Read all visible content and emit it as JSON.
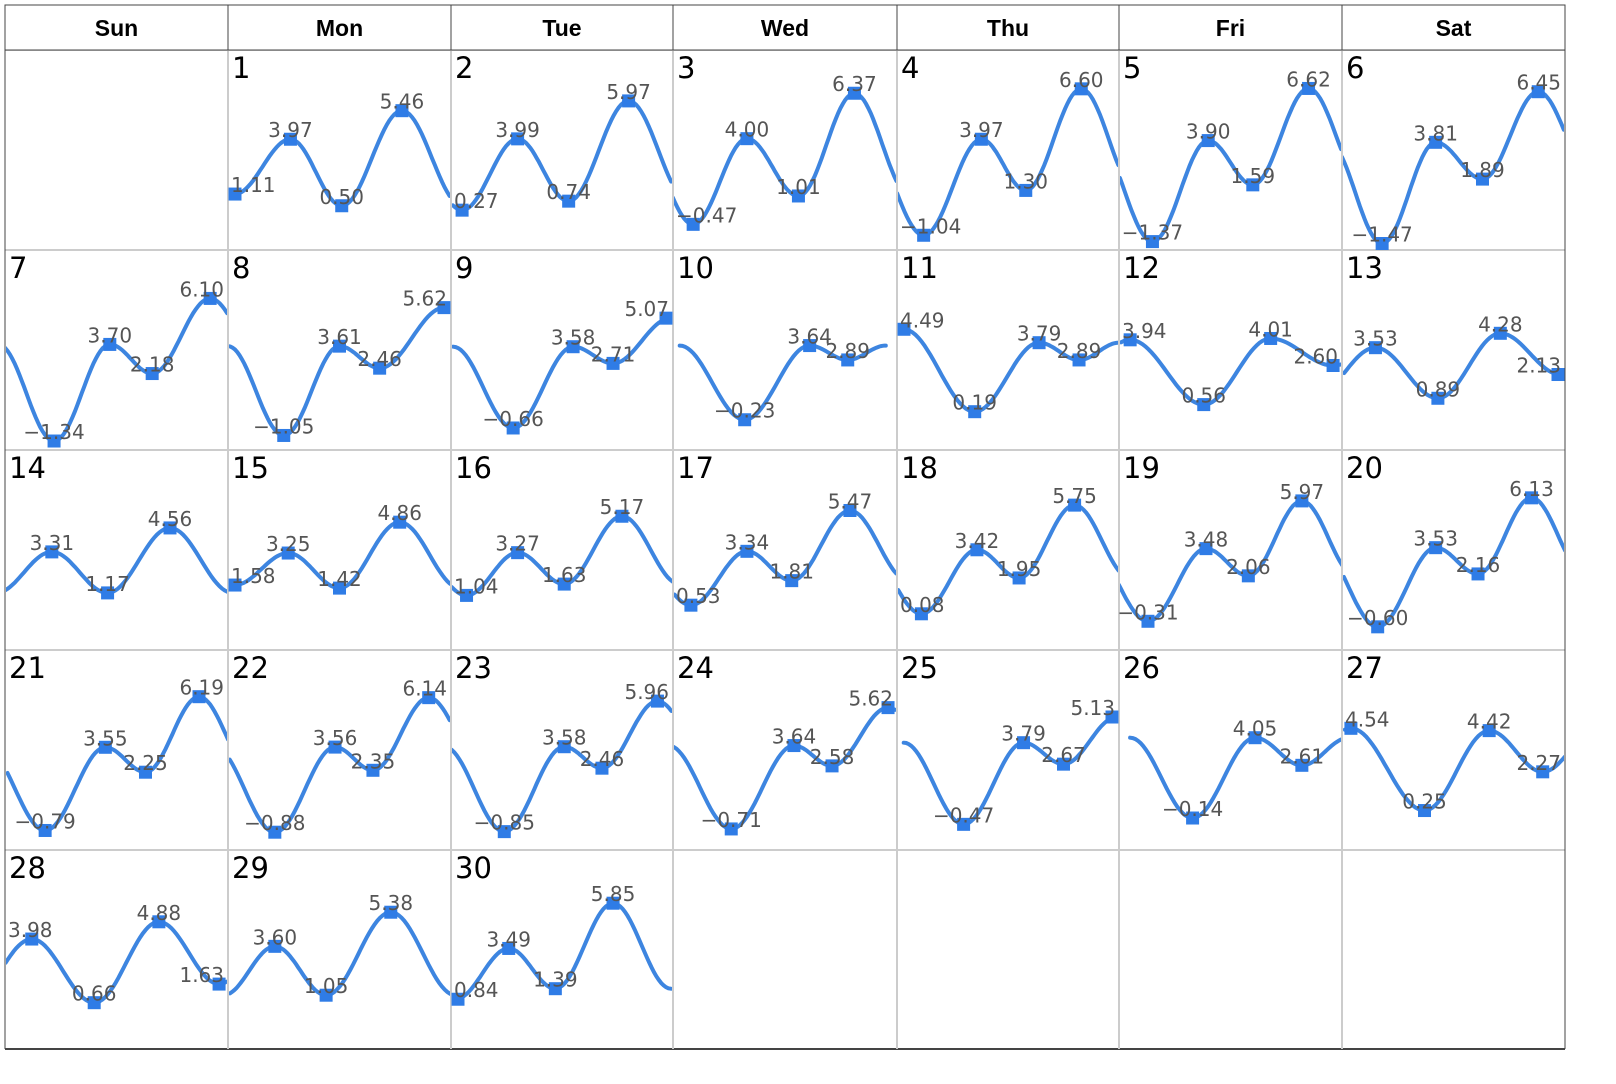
{
  "calendar": {
    "weekdays": [
      "Sun",
      "Mon",
      "Tue",
      "Wed",
      "Thu",
      "Fri",
      "Sat"
    ],
    "first_weekday_index": 1,
    "days_in_month": 30
  },
  "colors": {
    "curve": "#3d85e0",
    "marker": "#2f7ce6",
    "label": "#555555",
    "grid": "#cccccc",
    "border": "#444444"
  },
  "chart_data": {
    "type": "line",
    "title": "",
    "xlabel": "",
    "ylabel": "",
    "ylim": [
      -1.6,
      6.8
    ],
    "markers": "square",
    "days": [
      {
        "day": 1,
        "points": [
          [
            0.03,
            1.11
          ],
          [
            0.28,
            3.97
          ],
          [
            0.51,
            0.5
          ],
          [
            0.78,
            5.46
          ]
        ]
      },
      {
        "day": 2,
        "points": [
          [
            0.05,
            0.27
          ],
          [
            0.3,
            3.99
          ],
          [
            0.53,
            0.74
          ],
          [
            0.8,
            5.97
          ]
        ]
      },
      {
        "day": 3,
        "points": [
          [
            0.09,
            -0.47
          ],
          [
            0.33,
            4.0
          ],
          [
            0.56,
            1.01
          ],
          [
            0.81,
            6.37
          ]
        ]
      },
      {
        "day": 4,
        "points": [
          [
            0.12,
            -1.04
          ],
          [
            0.38,
            3.97
          ],
          [
            0.58,
            1.3
          ],
          [
            0.83,
            6.6
          ]
        ]
      },
      {
        "day": 5,
        "points": [
          [
            0.15,
            -1.37
          ],
          [
            0.4,
            3.9
          ],
          [
            0.6,
            1.59
          ],
          [
            0.85,
            6.62
          ]
        ]
      },
      {
        "day": 6,
        "points": [
          [
            0.18,
            -1.47
          ],
          [
            0.42,
            3.81
          ],
          [
            0.63,
            1.89
          ],
          [
            0.88,
            6.45
          ]
        ]
      },
      {
        "day": 7,
        "points": [
          [
            0.22,
            -1.34
          ],
          [
            0.47,
            3.7
          ],
          [
            0.66,
            2.18
          ],
          [
            0.92,
            6.1
          ]
        ]
      },
      {
        "day": 8,
        "points": [
          [
            0.25,
            -1.05
          ],
          [
            0.5,
            3.61
          ],
          [
            0.68,
            2.46
          ],
          [
            0.97,
            5.62
          ]
        ]
      },
      {
        "day": 9,
        "points": [
          [
            0.28,
            -0.66
          ],
          [
            0.55,
            3.58
          ],
          [
            0.73,
            2.71
          ],
          [
            0.99,
            5.07
          ]
        ]
      },
      {
        "day": 10,
        "points": [
          [
            0.32,
            -0.23
          ],
          [
            0.61,
            3.64
          ],
          [
            0.78,
            2.89
          ]
        ]
      },
      {
        "day": 11,
        "points": [
          [
            0.03,
            4.49
          ],
          [
            0.35,
            0.19
          ],
          [
            0.64,
            3.79
          ],
          [
            0.82,
            2.89
          ]
        ]
      },
      {
        "day": 12,
        "points": [
          [
            0.05,
            3.94
          ],
          [
            0.38,
            0.56
          ],
          [
            0.68,
            4.01
          ],
          [
            0.96,
            2.6
          ]
        ]
      },
      {
        "day": 13,
        "points": [
          [
            0.15,
            3.53
          ],
          [
            0.43,
            0.89
          ],
          [
            0.71,
            4.28
          ],
          [
            0.98,
            2.13
          ]
        ]
      },
      {
        "day": 14,
        "points": [
          [
            0.21,
            3.31
          ],
          [
            0.46,
            1.17
          ],
          [
            0.74,
            4.56
          ]
        ]
      },
      {
        "day": 15,
        "points": [
          [
            0.03,
            1.58
          ],
          [
            0.27,
            3.25
          ],
          [
            0.5,
            1.42
          ],
          [
            0.77,
            4.86
          ]
        ]
      },
      {
        "day": 16,
        "points": [
          [
            0.07,
            1.04
          ],
          [
            0.3,
            3.27
          ],
          [
            0.51,
            1.63
          ],
          [
            0.77,
            5.17
          ]
        ]
      },
      {
        "day": 17,
        "points": [
          [
            0.08,
            0.53
          ],
          [
            0.33,
            3.34
          ],
          [
            0.53,
            1.81
          ],
          [
            0.79,
            5.47
          ]
        ]
      },
      {
        "day": 18,
        "points": [
          [
            0.11,
            0.08
          ],
          [
            0.36,
            3.42
          ],
          [
            0.55,
            1.95
          ],
          [
            0.8,
            5.75
          ]
        ]
      },
      {
        "day": 19,
        "points": [
          [
            0.13,
            -0.31
          ],
          [
            0.39,
            3.48
          ],
          [
            0.58,
            2.06
          ],
          [
            0.82,
            5.97
          ]
        ]
      },
      {
        "day": 20,
        "points": [
          [
            0.16,
            -0.6
          ],
          [
            0.42,
            3.53
          ],
          [
            0.61,
            2.16
          ],
          [
            0.85,
            6.13
          ]
        ]
      },
      {
        "day": 21,
        "points": [
          [
            0.18,
            -0.79
          ],
          [
            0.45,
            3.55
          ],
          [
            0.63,
            2.25
          ],
          [
            0.87,
            6.19
          ]
        ]
      },
      {
        "day": 22,
        "points": [
          [
            0.21,
            -0.88
          ],
          [
            0.48,
            3.56
          ],
          [
            0.65,
            2.35
          ],
          [
            0.9,
            6.14
          ]
        ]
      },
      {
        "day": 23,
        "points": [
          [
            0.24,
            -0.85
          ],
          [
            0.51,
            3.58
          ],
          [
            0.68,
            2.46
          ],
          [
            0.93,
            5.96
          ]
        ]
      },
      {
        "day": 24,
        "points": [
          [
            0.26,
            -0.71
          ],
          [
            0.54,
            3.64
          ],
          [
            0.71,
            2.58
          ],
          [
            0.96,
            5.62
          ]
        ]
      },
      {
        "day": 25,
        "points": [
          [
            0.3,
            -0.47
          ],
          [
            0.57,
            3.79
          ],
          [
            0.75,
            2.67
          ],
          [
            0.99,
            5.13
          ]
        ]
      },
      {
        "day": 26,
        "points": [
          [
            0.33,
            -0.14
          ],
          [
            0.61,
            4.05
          ],
          [
            0.82,
            2.61
          ]
        ]
      },
      {
        "day": 27,
        "points": [
          [
            0.04,
            4.54
          ],
          [
            0.37,
            0.25
          ],
          [
            0.66,
            4.42
          ],
          [
            0.9,
            2.27
          ]
        ]
      },
      {
        "day": 28,
        "points": [
          [
            0.12,
            3.98
          ],
          [
            0.4,
            0.66
          ],
          [
            0.69,
            4.88
          ],
          [
            0.96,
            1.63
          ]
        ]
      },
      {
        "day": 29,
        "points": [
          [
            0.21,
            3.6
          ],
          [
            0.44,
            1.05
          ],
          [
            0.73,
            5.38
          ]
        ]
      },
      {
        "day": 30,
        "points": [
          [
            0.02,
            0.84
          ],
          [
            0.26,
            3.49
          ],
          [
            0.47,
            1.39
          ],
          [
            0.73,
            5.85
          ]
        ]
      }
    ]
  }
}
